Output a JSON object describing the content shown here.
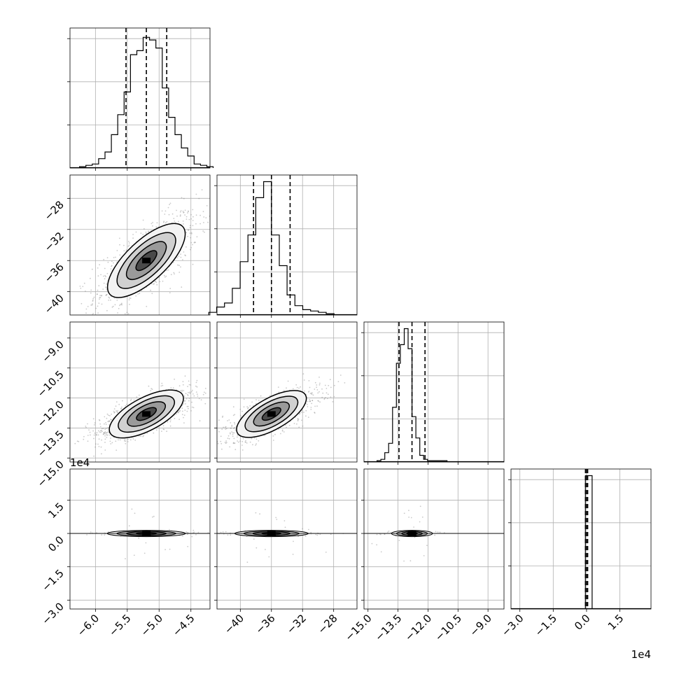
{
  "chart_data": {
    "type": "corner",
    "grid": true,
    "parameters": [
      {
        "ticks": [
          -6.0,
          -5.5,
          -5.0,
          -4.5
        ],
        "tick_labels": [
          "−6.0",
          "−5.5",
          "−5.0",
          "−4.5"
        ],
        "range": [
          -6.4,
          -4.2
        ],
        "mean": -5.2,
        "sigma": 0.3,
        "quantiles": [
          -5.52,
          -5.2,
          -4.88
        ]
      },
      {
        "ticks": [
          -40,
          -36,
          -32,
          -28
        ],
        "tick_labels": [
          "−40",
          "−36",
          "−32",
          "−28"
        ],
        "range": [
          -43,
          -25
        ],
        "mean": -36,
        "sigma": 2.3,
        "quantiles": [
          -38.3,
          -36.0,
          -33.6
        ]
      },
      {
        "ticks": [
          -15.0,
          -13.5,
          -12.0,
          -10.5,
          -9.0
        ],
        "tick_labels": [
          "−15.0",
          "−13.5",
          "−12.0",
          "−10.5",
          "−9.0"
        ],
        "range": [
          -15.2,
          -8.2
        ],
        "mean": -12.8,
        "sigma": 0.5,
        "quantiles": [
          -13.45,
          -12.8,
          -12.15
        ]
      },
      {
        "ticks": [
          -3.0,
          -1.5,
          0.0,
          1.5
        ],
        "tick_labels": [
          "−3.0",
          "−1.5",
          "0.0",
          "1.5"
        ],
        "range": [
          -3.4,
          2.9
        ],
        "mean": 0.0,
        "sigma": 0.02,
        "quantiles": [
          -0.05,
          0.0,
          0.05
        ],
        "offset_label": "1e4"
      }
    ],
    "histograms": [
      [
        1,
        2,
        3,
        7,
        12,
        25,
        40,
        57,
        85,
        88,
        98,
        96,
        90,
        60,
        38,
        25,
        15,
        9,
        3,
        2,
        1
      ],
      [
        2,
        6,
        9,
        20,
        40,
        60,
        88,
        100,
        60,
        37,
        15,
        7,
        4,
        3,
        2,
        1
      ],
      [
        1,
        2,
        7,
        14,
        41,
        74,
        88,
        100,
        85,
        34,
        18,
        5,
        2,
        1,
        1,
        1,
        1,
        1
      ],
      [
        100
      ]
    ],
    "hist_ymax": 105
  }
}
